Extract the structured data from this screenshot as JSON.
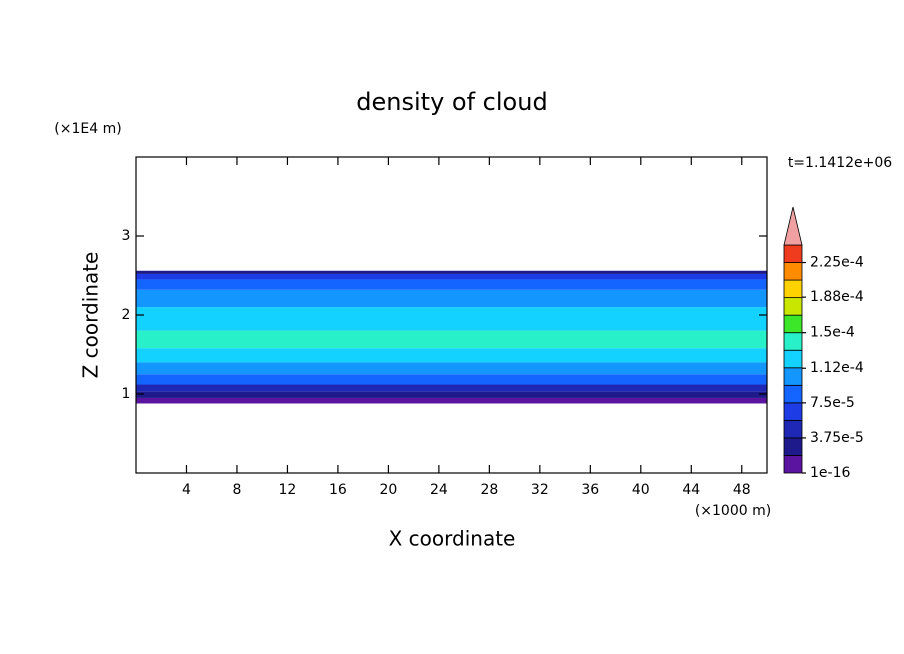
{
  "chart_data": {
    "type": "contour",
    "title": "density of cloud",
    "xlabel": "X coordinate",
    "ylabel": "Z coordinate",
    "x_unit": "(×1000 m)",
    "y_unit": "(×1E4 m)",
    "time_label": "t=1.1412e+06",
    "xlim": [
      0,
      50
    ],
    "xticks": [
      4,
      8,
      12,
      16,
      20,
      24,
      28,
      32,
      36,
      40,
      44,
      48
    ],
    "ylim": [
      0,
      4
    ],
    "yticks": [
      1,
      2,
      3
    ],
    "colorbar": {
      "clim": [
        1e-16,
        0.00024375
      ],
      "levels": [
        1e-16,
        1.875e-05,
        3.75e-05,
        5.625e-05,
        7.5e-05,
        9.375e-05,
        0.0001125,
        0.00013125,
        0.00015,
        0.00016875,
        0.0001875,
        0.00020625,
        0.000225
      ],
      "colors": [
        "#5a14a0",
        "#1e1a8c",
        "#1e28b4",
        "#1e3ce6",
        "#1464ff",
        "#1496ff",
        "#14d2ff",
        "#28f0c8",
        "#3ce628",
        "#c8e600",
        "#ffd200",
        "#ff8c00",
        "#f03c1e"
      ],
      "extend_color": "#f0a0a0",
      "ticks": [
        {
          "value": 1e-16,
          "label": "1e-16"
        },
        {
          "value": 3.75e-05,
          "label": "3.75e-5"
        },
        {
          "value": 7.5e-05,
          "label": "7.5e-5"
        },
        {
          "value": 0.000112,
          "label": "1.12e-4"
        },
        {
          "value": 0.00015,
          "label": "1.5e-4"
        },
        {
          "value": 0.000188,
          "label": "1.88e-4"
        },
        {
          "value": 0.000225,
          "label": "2.25e-4"
        }
      ]
    },
    "layers": [
      {
        "z": [
          0.88,
          0.95
        ],
        "value": 1e-05
      },
      {
        "z": [
          0.95,
          1.03
        ],
        "value": 3e-05
      },
      {
        "z": [
          1.03,
          1.12
        ],
        "value": 5e-05
      },
      {
        "z": [
          1.12,
          1.25
        ],
        "value": 8e-05
      },
      {
        "z": [
          1.25,
          1.4
        ],
        "value": 0.0001
      },
      {
        "z": [
          1.4,
          1.58
        ],
        "value": 0.00012
      },
      {
        "z": [
          1.58,
          1.8
        ],
        "value": 0.00014
      },
      {
        "z": [
          1.8,
          2.1
        ],
        "value": 0.00012
      },
      {
        "z": [
          2.1,
          2.32
        ],
        "value": 0.0001
      },
      {
        "z": [
          2.32,
          2.45
        ],
        "value": 8e-05
      },
      {
        "z": [
          2.45,
          2.52
        ],
        "value": 6e-05
      },
      {
        "z": [
          2.52,
          2.56
        ],
        "value": 3e-05
      }
    ]
  }
}
